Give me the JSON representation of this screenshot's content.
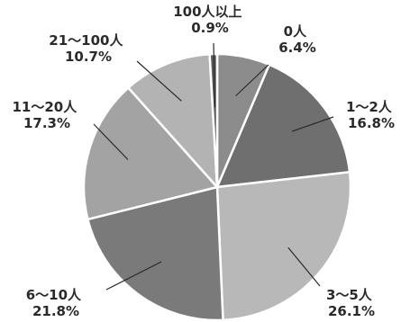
{
  "chart_data": {
    "type": "pie",
    "start": "top",
    "direction": "clockwise",
    "slices": [
      {
        "label": "0人",
        "value": 6.4,
        "value_text": "6.4%",
        "color": "#8c8c8c"
      },
      {
        "label": "1～2人",
        "value": 16.8,
        "value_text": "16.8%",
        "color": "#6f6f6f"
      },
      {
        "label": "3～5人",
        "value": 26.1,
        "value_text": "26.1%",
        "color": "#b8b8b8"
      },
      {
        "label": "6～10人",
        "value": 21.8,
        "value_text": "21.8%",
        "color": "#7a7a7a"
      },
      {
        "label": "11～20人",
        "value": 17.3,
        "value_text": "17.3%",
        "color": "#a3a3a3"
      },
      {
        "label": "21～100人",
        "value": 10.7,
        "value_text": "10.7%",
        "color": "#b3b3b3"
      },
      {
        "label": "100人以上",
        "value": 0.9,
        "value_text": "0.9%",
        "color": "#5a5a5a"
      }
    ]
  }
}
